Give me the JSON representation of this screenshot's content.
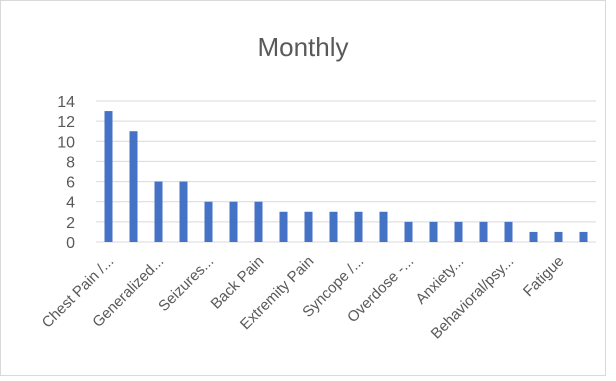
{
  "chart_data": {
    "type": "bar",
    "title": "Monthly",
    "xlabel": "",
    "ylabel": "",
    "ylim": [
      0,
      14
    ],
    "yticks": [
      0,
      2,
      4,
      6,
      8,
      10,
      12,
      14
    ],
    "grid": true,
    "legend": "none",
    "color": "#4472C4",
    "categories": [
      "Chest Pain /...",
      "",
      "Generalized...",
      "",
      "Seizures...",
      "",
      "Back Pain",
      "",
      "Extremity Pain",
      "",
      "Syncope /...",
      "",
      "Overdose -...",
      "",
      "Anxiety...",
      "",
      "Behavioral/psy...",
      "",
      "Fatigue",
      ""
    ],
    "values": [
      13,
      11,
      6,
      6,
      4,
      4,
      4,
      3,
      3,
      3,
      3,
      3,
      2,
      2,
      2,
      2,
      2,
      1,
      1,
      1
    ]
  }
}
